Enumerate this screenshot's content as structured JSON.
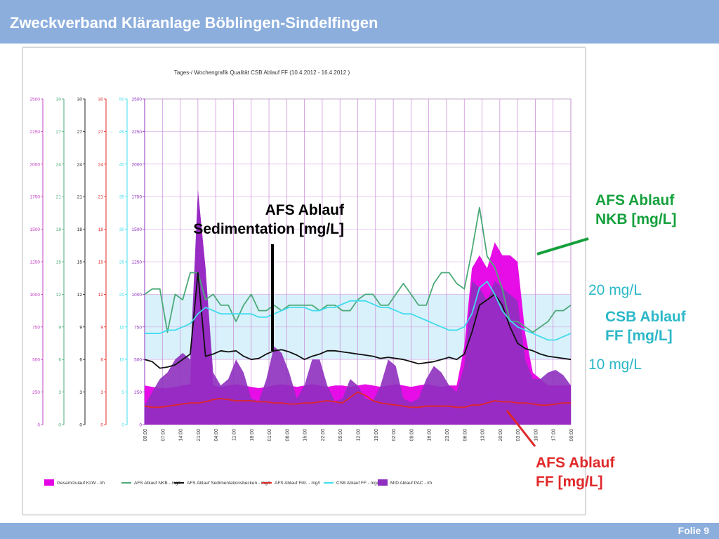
{
  "header": {
    "title": "Zweckverband Kläranlage Böblingen-Sindelfingen"
  },
  "footer": {
    "slide_label": "Folie 9"
  },
  "annotations": {
    "afs_sed_line1": "AFS Ablauf",
    "afs_sed_line2": "Sedimentation [mg/L]",
    "afs_nkb_line1": "AFS Ablauf",
    "afs_nkb_line2": "NKB [mg/L]",
    "limit_20": "20 mg/L",
    "csb_line1": "CSB Ablauf",
    "csb_line2": "FF [mg/L]",
    "limit_10": "10 mg/L",
    "afs_ff_line1": "AFS Ablauf",
    "afs_ff_line2": "FF [mg/L]"
  },
  "colors": {
    "header_bg": "#8caedd",
    "magenta": "#e600e6",
    "purple": "#8e2fbf",
    "green": "#4caa78",
    "black": "#111111",
    "red": "#e0282a",
    "cyan": "#3fdcec",
    "band": "#d2eefa",
    "ann_green": "#14a03c",
    "ann_cyan": "#2cb8c8",
    "ann_red": "#e0282a"
  },
  "chart_data": {
    "type": "area",
    "title": "Tages-/ Wochengrafik  Qualität  CSB Ablauf FF  (10.4.2012 - 16.4.2012 )",
    "x_ticks": [
      "00:00",
      "07:00",
      "14:00",
      "21:00",
      "04:00",
      "11:00",
      "18:00",
      "01:00",
      "08:00",
      "15:00",
      "22:00",
      "05:00",
      "12:00",
      "19:00",
      "02:00",
      "09:00",
      "16:00",
      "23:00",
      "06:00",
      "13:00",
      "20:00",
      "03:00",
      "10:00",
      "17:00",
      "00:00"
    ],
    "axes": [
      {
        "id": "gesamtzulauf",
        "color": "#c040c0",
        "range": [
          0,
          2500
        ],
        "ticks": [
          "0",
          "250",
          "500",
          "750",
          "1000",
          "1250",
          "1500",
          "1750",
          "2000",
          "2250",
          "2500"
        ]
      },
      {
        "id": "afs_nkb",
        "color": "#4caa78",
        "range": [
          0,
          30
        ],
        "ticks": [
          "0",
          "3",
          "6",
          "9",
          "12",
          "15",
          "18",
          "21",
          "24",
          "27",
          "30"
        ]
      },
      {
        "id": "afs_sed",
        "color": "#222222",
        "range": [
          0,
          30
        ],
        "ticks": [
          "0",
          "3",
          "6",
          "9",
          "12",
          "15",
          "18",
          "21",
          "24",
          "27",
          "30"
        ]
      },
      {
        "id": "afs_ff",
        "color": "#e0282a",
        "range": [
          0,
          30
        ],
        "ticks": [
          "0",
          "3",
          "6",
          "9",
          "12",
          "15",
          "18",
          "21",
          "24",
          "27",
          "30"
        ]
      },
      {
        "id": "csb_ff",
        "color": "#3fdcec",
        "range": [
          0,
          50
        ],
        "ticks": [
          "0",
          "5",
          "10",
          "15",
          "20",
          "25",
          "30",
          "35",
          "40",
          "45",
          "50"
        ]
      },
      {
        "id": "mid_pac",
        "color": "#8e2fbf",
        "range": [
          0,
          2500
        ],
        "ticks": [
          "0",
          "250",
          "500",
          "750",
          "1000",
          "1250",
          "1500",
          "1750",
          "2000",
          "2250",
          "2500"
        ]
      }
    ],
    "band": {
      "axis": "csb_ff",
      "from": 10,
      "to": 20
    },
    "x": [
      0,
      3,
      6,
      9,
      12,
      15,
      18,
      21,
      24,
      27,
      30,
      33,
      36,
      39,
      42,
      45,
      48,
      51,
      54,
      57,
      60,
      63,
      66,
      69,
      72,
      75,
      78,
      81,
      84,
      87,
      90,
      93,
      96,
      99,
      102,
      105,
      108,
      111,
      114,
      117,
      120,
      123,
      126,
      129,
      132,
      135,
      138,
      141,
      144,
      147,
      150,
      153,
      156,
      159,
      162,
      165,
      168
    ],
    "series": [
      {
        "name": "Gesamtzulauf KLW - l/h",
        "axis": "gesamtzulauf",
        "style": "area",
        "color": "#e600e6",
        "values": [
          300,
          290,
          280,
          280,
          290,
          300,
          310,
          1800,
          1200,
          300,
          290,
          300,
          310,
          300,
          290,
          280,
          290,
          300,
          310,
          300,
          290,
          300,
          310,
          300,
          290,
          300,
          300,
          290,
          300,
          310,
          300,
          290,
          300,
          310,
          300,
          290,
          300,
          310,
          300,
          290,
          300,
          300,
          600,
          1200,
          1300,
          1200,
          1400,
          1300,
          1300,
          1250,
          700,
          400,
          350,
          300,
          300,
          300,
          300
        ]
      },
      {
        "name": "MID Ablauf PAC - l/h",
        "axis": "mid_pac",
        "style": "area",
        "color": "#8e2fbf",
        "values": [
          150,
          250,
          350,
          400,
          500,
          550,
          500,
          1800,
          1200,
          400,
          300,
          350,
          500,
          400,
          200,
          180,
          350,
          600,
          550,
          400,
          200,
          300,
          500,
          500,
          300,
          180,
          200,
          350,
          300,
          200,
          180,
          300,
          500,
          450,
          200,
          170,
          200,
          350,
          450,
          400,
          300,
          250,
          450,
          1100,
          1050,
          950,
          1100,
          1050,
          1000,
          950,
          500,
          350,
          350,
          400,
          420,
          380,
          300
        ]
      },
      {
        "name": "AFS Ablauf NKB - mg/l",
        "axis": "afs_nkb",
        "style": "line",
        "color": "#4caa78",
        "values": [
          12,
          12.5,
          12.5,
          8.5,
          12,
          11.5,
          14,
          14,
          11.5,
          12,
          11,
          11,
          9.5,
          11,
          12,
          10.5,
          10.5,
          11,
          10.5,
          11,
          11,
          11,
          11,
          10.5,
          11,
          11,
          10.5,
          10.5,
          11.5,
          12,
          12,
          11,
          11,
          12,
          13,
          12,
          11,
          11,
          13,
          14,
          14,
          13,
          12.5,
          16,
          20,
          15.5,
          14.5,
          12.5,
          9.5,
          9.5,
          9,
          8.5,
          9,
          9.5,
          10.5,
          10.5,
          11
        ]
      },
      {
        "name": "AFS Ablauf Sedimentationsbecken - mg/l",
        "axis": "afs_sed",
        "style": "line",
        "color": "#111111",
        "values": [
          6,
          5.8,
          5.2,
          5.3,
          5.5,
          6,
          6.5,
          14,
          6.3,
          6.5,
          6.8,
          6.7,
          6.8,
          6.3,
          6,
          6.1,
          6.5,
          6.8,
          6.9,
          6.7,
          6.4,
          6,
          6.3,
          6.5,
          6.8,
          6.8,
          6.7,
          6.6,
          6.5,
          6.4,
          6.3,
          6.1,
          6.2,
          6.1,
          6,
          5.8,
          5.6,
          5.7,
          5.8,
          6,
          6.2,
          6,
          6.5,
          8.5,
          11,
          11.5,
          12,
          11,
          9,
          7.5,
          7,
          6.8,
          6.5,
          6.3,
          6.2,
          6.1,
          6
        ]
      },
      {
        "name": "AFS Ablauf Filtr. - mg/l",
        "axis": "afs_ff",
        "style": "line",
        "color": "#e0282a",
        "values": [
          1.7,
          1.6,
          1.6,
          1.7,
          1.8,
          1.9,
          2,
          2,
          2.1,
          2.3,
          2.4,
          2.3,
          2.2,
          2.2,
          2.2,
          2.1,
          2.1,
          2,
          2,
          1.9,
          1.9,
          2,
          2,
          2.1,
          2.2,
          2.1,
          2,
          2.5,
          3,
          2.7,
          2.2,
          2,
          1.9,
          1.8,
          1.7,
          1.6,
          1.6,
          1.7,
          1.7,
          1.7,
          1.7,
          1.6,
          1.6,
          1.8,
          1.8,
          2,
          2.2,
          2.1,
          2.1,
          2,
          2,
          1.9,
          1.8,
          1.8,
          1.9,
          2,
          2
        ]
      },
      {
        "name": "CSB Ablauf FF - mg/l",
        "axis": "csb_ff",
        "style": "line",
        "color": "#3fdcec",
        "values": [
          14,
          14,
          14,
          14.5,
          14.5,
          15,
          15.5,
          17,
          18,
          17.5,
          17,
          17,
          17,
          17,
          17,
          16.5,
          16.5,
          17,
          17.5,
          18,
          18,
          18,
          17.5,
          17.5,
          18,
          18,
          18.5,
          19,
          19,
          19,
          18.5,
          18,
          18,
          17.5,
          17,
          17,
          16.5,
          16,
          15.5,
          15,
          14.5,
          14.5,
          15,
          17,
          21,
          22,
          20,
          17.5,
          16,
          15,
          14.5,
          14,
          13.5,
          13,
          13,
          13.5,
          14
        ]
      }
    ],
    "legend": {
      "placement": "bottom",
      "entries": [
        {
          "label": "Gesamtzulauf KLW - l/h",
          "swatch": "area",
          "color": "#e600e6"
        },
        {
          "label": "AFS Ablauf NKB - mg/l",
          "swatch": "line",
          "color": "#4caa78"
        },
        {
          "label": "AFS Ablauf Sedimentationsbecken - mg/l",
          "swatch": "line",
          "color": "#111111"
        },
        {
          "label": "AFS Ablauf Filtr. - mg/l",
          "swatch": "line",
          "color": "#e0282a"
        },
        {
          "label": "CSB Ablauf FF - mg/l",
          "swatch": "line",
          "color": "#3fdcec"
        },
        {
          "label": "MID Ablauf PAC - l/h",
          "swatch": "area",
          "color": "#8e2fbf"
        }
      ]
    }
  }
}
